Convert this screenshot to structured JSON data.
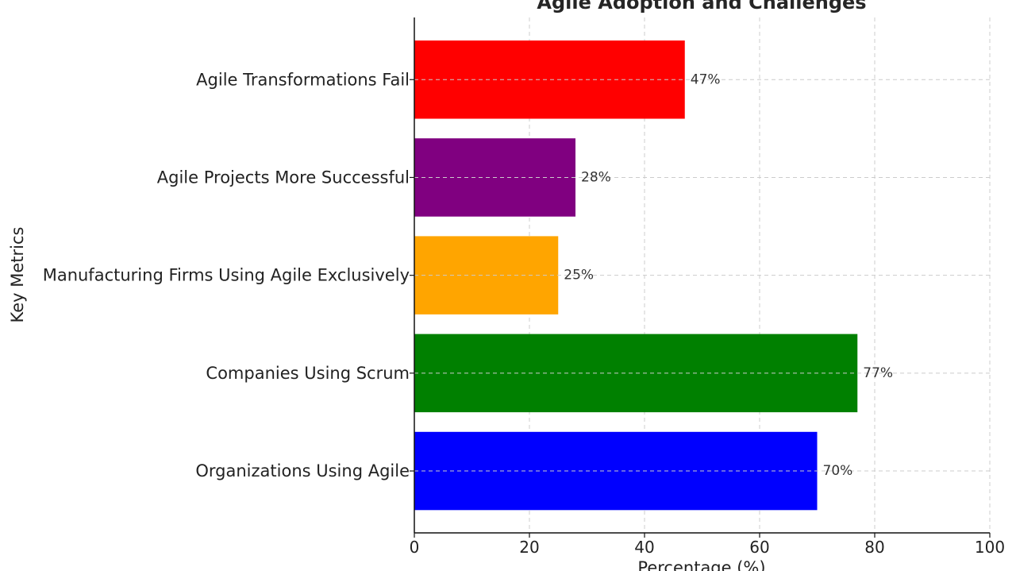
{
  "chart_data": {
    "type": "bar",
    "orientation": "horizontal",
    "title": "Agile Adoption and Challenges",
    "xlabel": "Percentage (%)",
    "ylabel": "Key Metrics",
    "xlim": [
      0,
      100
    ],
    "xticks": [
      0,
      20,
      40,
      60,
      80,
      100
    ],
    "grid": true,
    "categories": [
      "Organizations Using Agile",
      "Companies Using Scrum",
      "Manufacturing Firms Using Agile Exclusively",
      "Agile Projects More Successful",
      "Agile Transformations Fail"
    ],
    "values": [
      70,
      77,
      25,
      28,
      47
    ],
    "value_labels": [
      "70%",
      "77%",
      "25%",
      "28%",
      "47%"
    ],
    "colors": [
      "#0000ff",
      "#008000",
      "#ffa500",
      "#800080",
      "#ff0000"
    ]
  }
}
